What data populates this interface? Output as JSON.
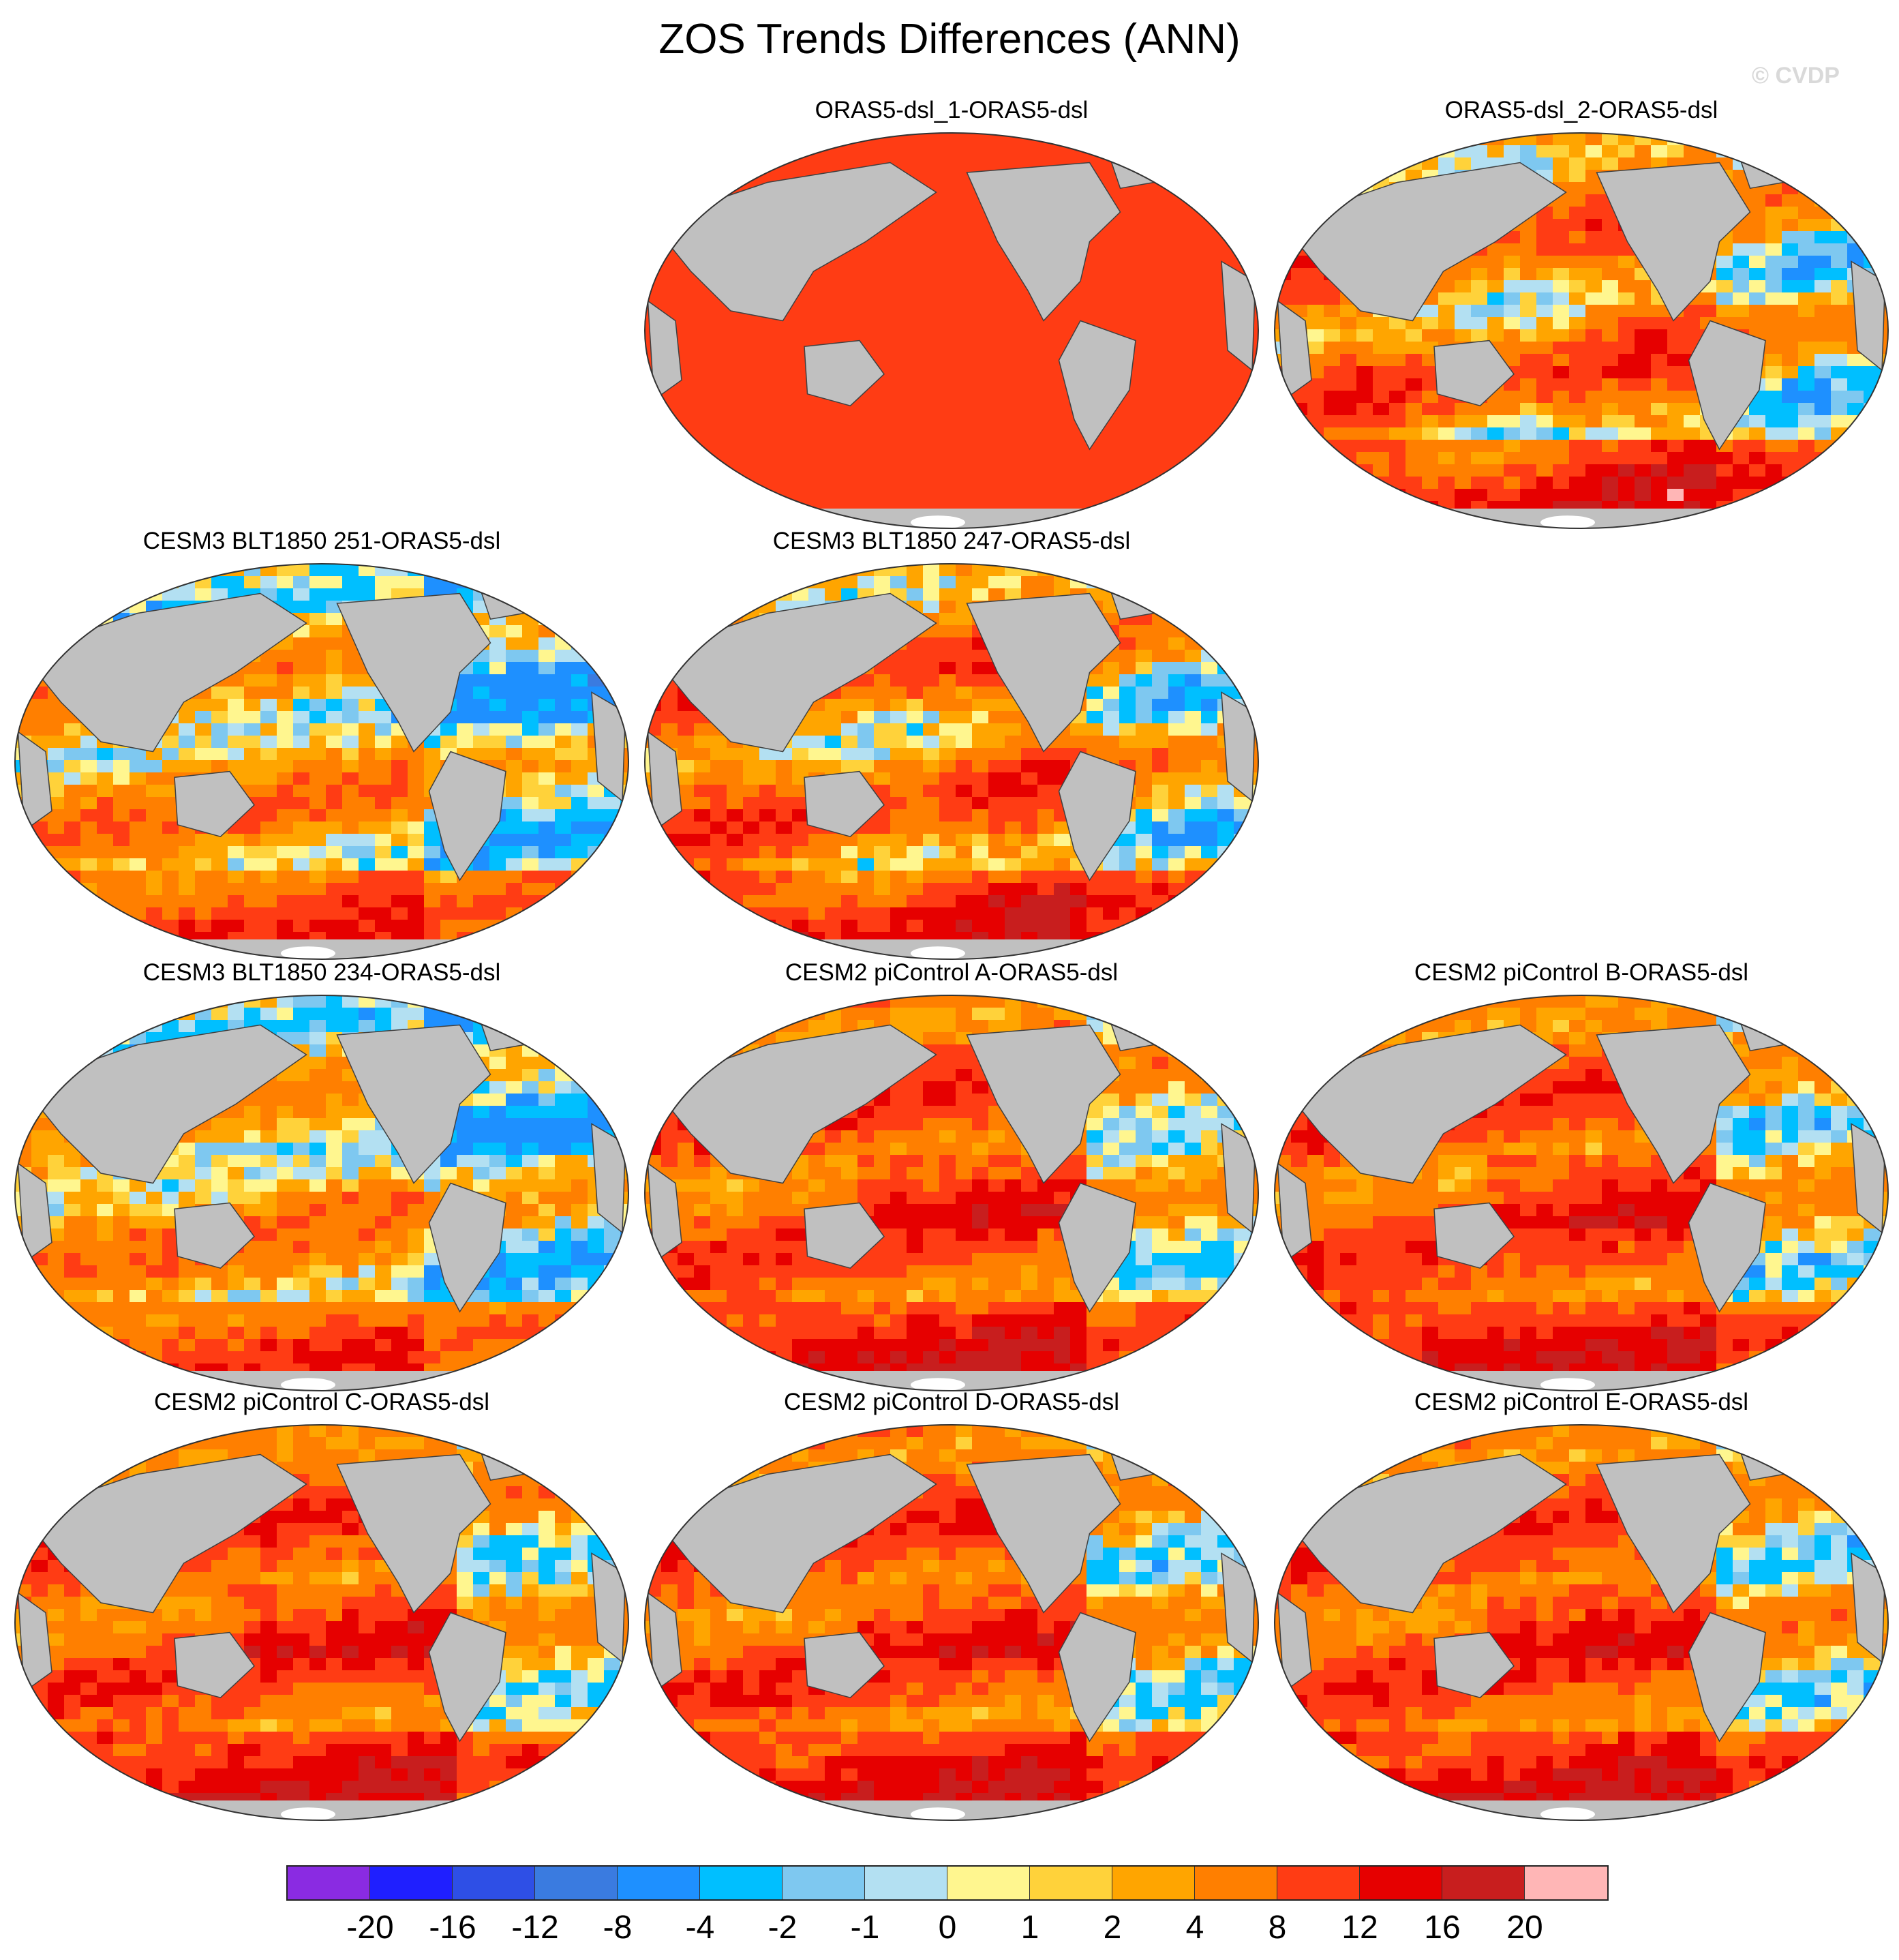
{
  "title": "ZOS Trends Differences (ANN)",
  "copyright": "© CVDP",
  "panels": [
    {
      "label": "ORAS5-dsl_1-ORAS5-dsl",
      "pattern": "uniform",
      "seed": 1
    },
    {
      "label": "ORAS5-dsl_2-ORAS5-dsl",
      "pattern": "mixed",
      "seed": 2
    },
    {
      "label": "CESM3 BLT1850 251-ORAS5-dsl",
      "pattern": "cool",
      "seed": 3
    },
    {
      "label": "CESM3 BLT1850 247-ORAS5-dsl",
      "pattern": "mixed",
      "seed": 4
    },
    {
      "label": "CESM3 BLT1850 234-ORAS5-dsl",
      "pattern": "cool",
      "seed": 5
    },
    {
      "label": "CESM2 piControl A-ORAS5-dsl",
      "pattern": "warm",
      "seed": 6
    },
    {
      "label": "CESM2 piControl B-ORAS5-dsl",
      "pattern": "warm",
      "seed": 7
    },
    {
      "label": "CESM2 piControl C-ORAS5-dsl",
      "pattern": "warm",
      "seed": 8
    },
    {
      "label": "CESM2 piControl D-ORAS5-dsl",
      "pattern": "warm",
      "seed": 9
    },
    {
      "label": "CESM2 piControl E-ORAS5-dsl",
      "pattern": "warm",
      "seed": 10
    }
  ],
  "colorbar": {
    "colors": [
      "#8a2be2",
      "#1f1fff",
      "#2e4fe6",
      "#3a7be0",
      "#1e90ff",
      "#00bfff",
      "#7ec8f0",
      "#b3e0f2",
      "#fff68f",
      "#ffd23a",
      "#ffa500",
      "#ff7f00",
      "#ff3c14",
      "#e60000",
      "#c81e1e",
      "#ffb6b6"
    ],
    "labels": [
      "-20",
      "-16",
      "-12",
      "-8",
      "-4",
      "-2",
      "-1",
      "0",
      "1",
      "2",
      "4",
      "8",
      "12",
      "16",
      "20"
    ]
  },
  "colors": {
    "land": "#c0c0c0",
    "coast": "#404040",
    "ice": "#ffffff"
  }
}
